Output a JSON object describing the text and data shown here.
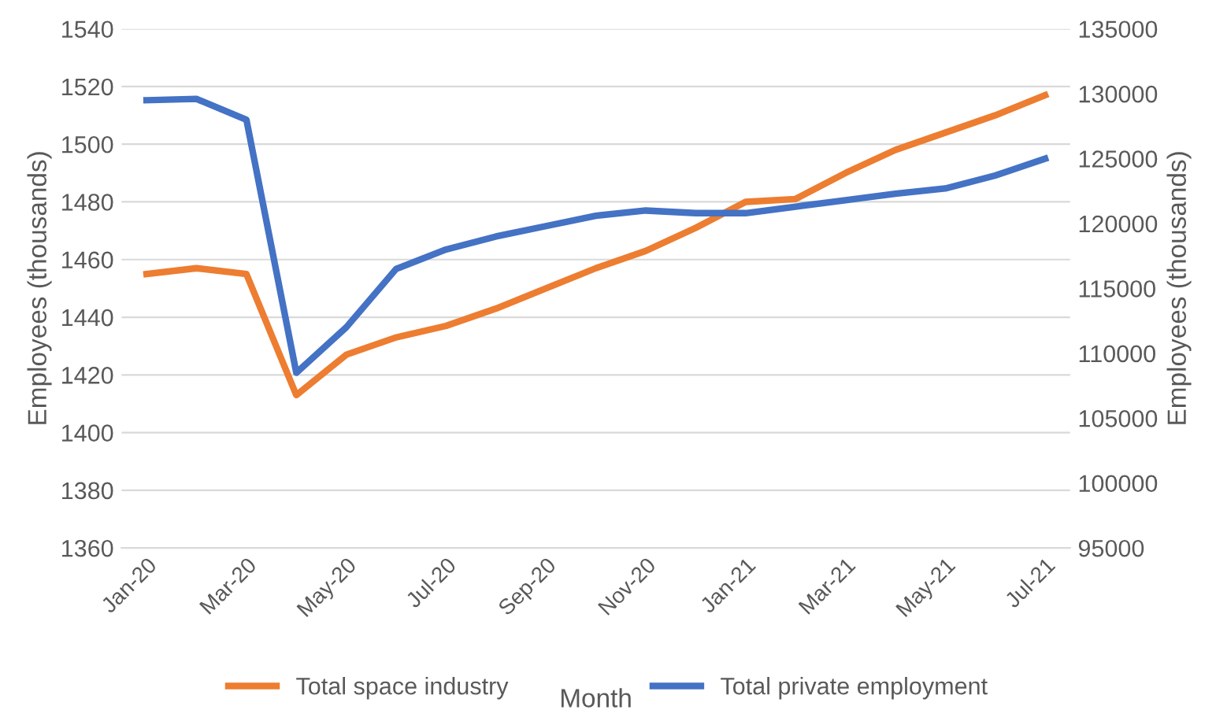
{
  "chart_data": {
    "type": "line",
    "xlabel": "Month",
    "ylabel": "Employees (thousands)",
    "y2label": "Employees (thousands)",
    "categories": [
      "Jan-20",
      null,
      "Mar-20",
      null,
      "May-20",
      null,
      "Jul-20",
      null,
      "Sep-20",
      null,
      "Nov-20",
      null,
      "Jan-21",
      null,
      "Mar-21",
      null,
      "May-21",
      null,
      "Jul-21"
    ],
    "series": [
      {
        "name": "Total space industry",
        "color": "#ed7d31",
        "values": [
          1455,
          1457,
          1455,
          1413,
          1427,
          1433,
          1437,
          1443,
          1450,
          1457,
          1463,
          1471,
          1480,
          1481,
          1490,
          1498,
          1504,
          1510,
          1517
        ]
      },
      {
        "name": "Total private employment",
        "color": "#4472c4",
        "axis": "y2",
        "values": [
          129500,
          129600,
          128000,
          108500,
          112000,
          116500,
          118000,
          119000,
          119800,
          120600,
          121000,
          120800,
          120800,
          121300,
          121800,
          122300,
          122700,
          123700,
          125000
        ]
      }
    ],
    "ylim": [
      1360,
      1540
    ],
    "yticks": [
      1360,
      1380,
      1400,
      1420,
      1440,
      1460,
      1480,
      1500,
      1520,
      1540
    ],
    "y2lim": [
      95000,
      135000
    ],
    "y2ticks": [
      95000,
      100000,
      105000,
      110000,
      115000,
      120000,
      125000,
      130000,
      135000
    ],
    "grid": "y",
    "legend": "bottom",
    "line_style": "solid",
    "marker": "none"
  }
}
